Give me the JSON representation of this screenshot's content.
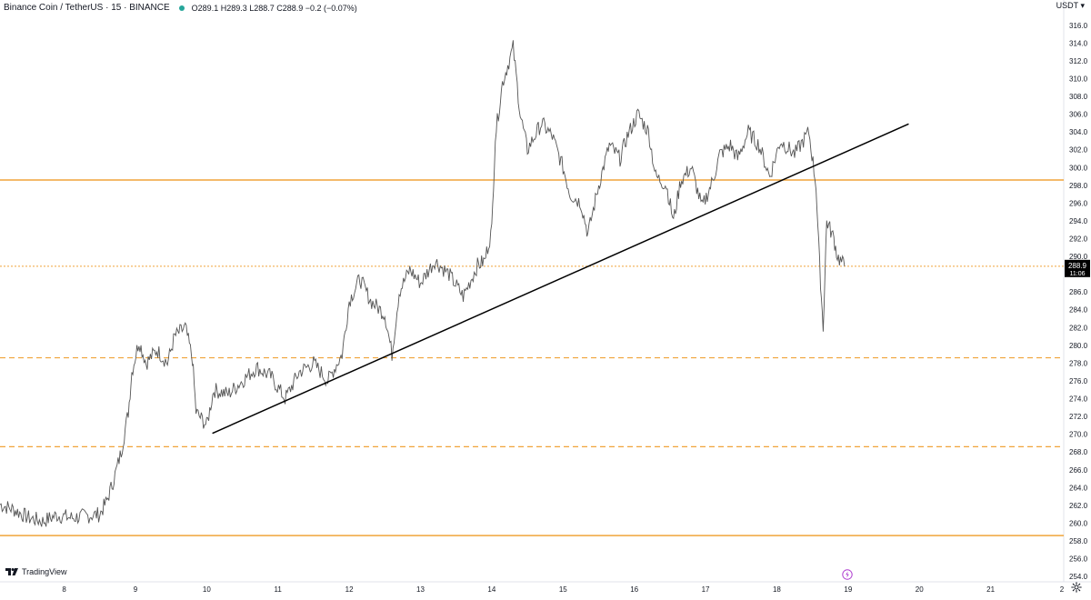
{
  "header": {
    "symbol": "Binance Coin / TetherUS · 15 · BINANCE",
    "ohlc": "O289.1 H289.3 L288.7 C288.9 −0.2 (−0.07%)",
    "currency": "USDT ▾"
  },
  "footer": {
    "brand": "TradingView"
  },
  "price_badge": {
    "price": "288.9",
    "countdown": "11:06"
  },
  "colors": {
    "candles": "#555555",
    "level_lines": "#f0a43a",
    "trendline": "#000000",
    "badge": "#000000",
    "status_dot": "#26a69a",
    "replay_icon": "#b040d0"
  },
  "chart_data": {
    "type": "line",
    "title": "Binance Coin / TetherUS · 15 · BINANCE",
    "xlabel": "",
    "ylabel": "",
    "x_ticks": [
      "8",
      "9",
      "10",
      "11",
      "12",
      "13",
      "14",
      "15",
      "16",
      "17",
      "18",
      "19",
      "20",
      "21",
      "2"
    ],
    "y_ticks": [
      "254.0",
      "256.0",
      "258.0",
      "260.0",
      "262.0",
      "264.0",
      "266.0",
      "268.0",
      "270.0",
      "272.0",
      "274.0",
      "276.0",
      "278.0",
      "280.0",
      "282.0",
      "284.0",
      "286.0",
      "288.0",
      "290.0",
      "292.0",
      "294.0",
      "296.0",
      "298.0",
      "300.0",
      "302.0",
      "304.0",
      "306.0",
      "308.0",
      "310.0",
      "312.0",
      "314.0",
      "316.0"
    ],
    "ylim": [
      253.4,
      317.0
    ],
    "xlim": [
      7.1,
      22.0
    ],
    "grid": false,
    "last_price": 288.9,
    "price_points": [
      [
        7.1,
        262.1
      ],
      [
        7.3,
        261.5
      ],
      [
        7.5,
        260.6
      ],
      [
        7.7,
        260.2
      ],
      [
        7.9,
        260.9
      ],
      [
        8.1,
        260.6
      ],
      [
        8.3,
        260.8
      ],
      [
        8.5,
        261.0
      ],
      [
        8.6,
        262.5
      ],
      [
        8.7,
        265.0
      ],
      [
        8.8,
        268.0
      ],
      [
        8.9,
        272.5
      ],
      [
        8.95,
        277.0
      ],
      [
        9.05,
        280.5
      ],
      [
        9.15,
        278.0
      ],
      [
        9.3,
        279.5
      ],
      [
        9.45,
        278.0
      ],
      [
        9.55,
        281.0
      ],
      [
        9.7,
        282.0
      ],
      [
        9.8,
        278.5
      ],
      [
        9.85,
        272.5
      ],
      [
        10.0,
        271.0
      ],
      [
        10.1,
        275.0
      ],
      [
        10.3,
        274.5
      ],
      [
        10.5,
        276.0
      ],
      [
        10.7,
        277.5
      ],
      [
        10.9,
        276.5
      ],
      [
        11.1,
        274.0
      ],
      [
        11.3,
        277.0
      ],
      [
        11.5,
        278.0
      ],
      [
        11.7,
        276.0
      ],
      [
        11.9,
        279.0
      ],
      [
        12.0,
        285.0
      ],
      [
        12.15,
        287.5
      ],
      [
        12.3,
        285.0
      ],
      [
        12.5,
        283.5
      ],
      [
        12.6,
        279.0
      ],
      [
        12.7,
        286.0
      ],
      [
        12.85,
        288.5
      ],
      [
        13.0,
        287.0
      ],
      [
        13.2,
        289.5
      ],
      [
        13.4,
        288.0
      ],
      [
        13.6,
        285.5
      ],
      [
        13.8,
        289.0
      ],
      [
        13.9,
        289.5
      ],
      [
        14.0,
        293.0
      ],
      [
        14.05,
        303.5
      ],
      [
        14.15,
        309.5
      ],
      [
        14.3,
        313.5
      ],
      [
        14.4,
        306.0
      ],
      [
        14.5,
        302.0
      ],
      [
        14.7,
        305.0
      ],
      [
        14.85,
        303.5
      ],
      [
        15.0,
        300.0
      ],
      [
        15.1,
        297.0
      ],
      [
        15.25,
        296.0
      ],
      [
        15.35,
        292.5
      ],
      [
        15.5,
        298.0
      ],
      [
        15.65,
        302.5
      ],
      [
        15.8,
        301.0
      ],
      [
        15.9,
        303.5
      ],
      [
        16.05,
        306.0
      ],
      [
        16.2,
        304.0
      ],
      [
        16.3,
        299.0
      ],
      [
        16.45,
        298.0
      ],
      [
        16.55,
        294.0
      ],
      [
        16.65,
        298.5
      ],
      [
        16.8,
        300.0
      ],
      [
        16.95,
        295.5
      ],
      [
        17.1,
        298.5
      ],
      [
        17.2,
        301.5
      ],
      [
        17.35,
        302.5
      ],
      [
        17.45,
        301.0
      ],
      [
        17.6,
        304.0
      ],
      [
        17.75,
        302.5
      ],
      [
        17.9,
        299.0
      ],
      [
        18.05,
        303.0
      ],
      [
        18.25,
        301.5
      ],
      [
        18.45,
        304.0
      ],
      [
        18.55,
        298.0
      ],
      [
        18.6,
        289.0
      ],
      [
        18.65,
        282.0
      ],
      [
        18.7,
        294.0
      ],
      [
        18.8,
        292.0
      ],
      [
        18.85,
        290.0
      ],
      [
        18.95,
        288.9
      ]
    ]
  },
  "levels": [
    {
      "price": 298.6,
      "style": "solid"
    },
    {
      "price": 288.9,
      "style": "dotted"
    },
    {
      "price": 278.6,
      "style": "dashed"
    },
    {
      "price": 268.6,
      "style": "dashed"
    },
    {
      "price": 258.6,
      "style": "solid"
    }
  ],
  "trendline": {
    "from": [
      10.08,
      270.1
    ],
    "to": [
      19.85,
      304.9
    ]
  }
}
